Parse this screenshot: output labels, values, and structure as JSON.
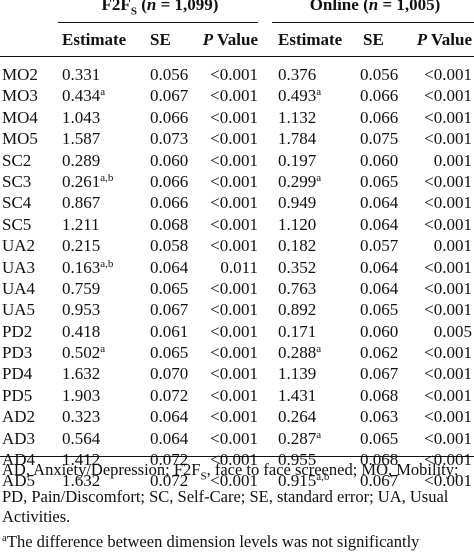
{
  "groups": {
    "f2f": {
      "prefix": "F2F",
      "sub": "S",
      "n_open": " (",
      "n_var": "n",
      "n_value": " = 1,099)"
    },
    "online": {
      "prefix": "Online",
      "n_open": " (",
      "n_var": "n",
      "n_value": " = 1,005)"
    }
  },
  "columns": {
    "estimate": "Estimate",
    "se": "SE",
    "p_italic": "P",
    "p_rest": " Value"
  },
  "rows": [
    {
      "label": "MO2",
      "f2f": {
        "est": "0.331",
        "sup": "",
        "se": "0.056",
        "p": "<0.001"
      },
      "online": {
        "est": "0.376",
        "sup": "",
        "se": "0.056",
        "p": "<0.001"
      }
    },
    {
      "label": "MO3",
      "f2f": {
        "est": "0.434",
        "sup": "a",
        "se": "0.067",
        "p": "<0.001"
      },
      "online": {
        "est": "0.493",
        "sup": "a",
        "se": "0.066",
        "p": "<0.001"
      }
    },
    {
      "label": "MO4",
      "f2f": {
        "est": "1.043",
        "sup": "",
        "se": "0.066",
        "p": "<0.001"
      },
      "online": {
        "est": "1.132",
        "sup": "",
        "se": "0.066",
        "p": "<0.001"
      }
    },
    {
      "label": "MO5",
      "f2f": {
        "est": "1.587",
        "sup": "",
        "se": "0.073",
        "p": "<0.001"
      },
      "online": {
        "est": "1.784",
        "sup": "",
        "se": "0.075",
        "p": "<0.001"
      }
    },
    {
      "label": "SC2",
      "f2f": {
        "est": "0.289",
        "sup": "",
        "se": "0.060",
        "p": "<0.001"
      },
      "online": {
        "est": "0.197",
        "sup": "",
        "se": "0.060",
        "p": "0.001"
      }
    },
    {
      "label": "SC3",
      "f2f": {
        "est": "0.261",
        "sup": "a,b",
        "se": "0.066",
        "p": "<0.001"
      },
      "online": {
        "est": "0.299",
        "sup": "a",
        "se": "0.065",
        "p": "<0.001"
      }
    },
    {
      "label": "SC4",
      "f2f": {
        "est": "0.867",
        "sup": "",
        "se": "0.066",
        "p": "<0.001"
      },
      "online": {
        "est": "0.949",
        "sup": "",
        "se": "0.064",
        "p": "<0.001"
      }
    },
    {
      "label": "SC5",
      "f2f": {
        "est": "1.211",
        "sup": "",
        "se": "0.068",
        "p": "<0.001"
      },
      "online": {
        "est": "1.120",
        "sup": "",
        "se": "0.064",
        "p": "<0.001"
      }
    },
    {
      "label": "UA2",
      "f2f": {
        "est": "0.215",
        "sup": "",
        "se": "0.058",
        "p": "<0.001"
      },
      "online": {
        "est": "0.182",
        "sup": "",
        "se": "0.057",
        "p": "0.001"
      }
    },
    {
      "label": "UA3",
      "f2f": {
        "est": "0.163",
        "sup": "a,b",
        "se": "0.064",
        "p": "0.011"
      },
      "online": {
        "est": "0.352",
        "sup": "",
        "se": "0.064",
        "p": "<0.001"
      }
    },
    {
      "label": "UA4",
      "f2f": {
        "est": "0.759",
        "sup": "",
        "se": "0.065",
        "p": "<0.001"
      },
      "online": {
        "est": "0.763",
        "sup": "",
        "se": "0.064",
        "p": "<0.001"
      }
    },
    {
      "label": "UA5",
      "f2f": {
        "est": "0.953",
        "sup": "",
        "se": "0.067",
        "p": "<0.001"
      },
      "online": {
        "est": "0.892",
        "sup": "",
        "se": "0.065",
        "p": "<0.001"
      }
    },
    {
      "label": "PD2",
      "f2f": {
        "est": "0.418",
        "sup": "",
        "se": "0.061",
        "p": "<0.001"
      },
      "online": {
        "est": "0.171",
        "sup": "",
        "se": "0.060",
        "p": "0.005"
      }
    },
    {
      "label": "PD3",
      "f2f": {
        "est": "0.502",
        "sup": "a",
        "se": "0.065",
        "p": "<0.001"
      },
      "online": {
        "est": "0.288",
        "sup": "a",
        "se": "0.062",
        "p": "<0.001"
      }
    },
    {
      "label": "PD4",
      "f2f": {
        "est": "1.632",
        "sup": "",
        "se": "0.070",
        "p": "<0.001"
      },
      "online": {
        "est": "1.139",
        "sup": "",
        "se": "0.067",
        "p": "<0.001"
      }
    },
    {
      "label": "PD5",
      "f2f": {
        "est": "1.903",
        "sup": "",
        "se": "0.072",
        "p": "<0.001"
      },
      "online": {
        "est": "1.431",
        "sup": "",
        "se": "0.068",
        "p": "<0.001"
      }
    },
    {
      "label": "AD2",
      "f2f": {
        "est": "0.323",
        "sup": "",
        "se": "0.064",
        "p": "<0.001"
      },
      "online": {
        "est": "0.264",
        "sup": "",
        "se": "0.063",
        "p": "<0.001"
      }
    },
    {
      "label": "AD3",
      "f2f": {
        "est": "0.564",
        "sup": "",
        "se": "0.064",
        "p": "<0.001"
      },
      "online": {
        "est": "0.287",
        "sup": "a",
        "se": "0.065",
        "p": "<0.001"
      }
    },
    {
      "label": "AD4",
      "f2f": {
        "est": "1.412",
        "sup": "",
        "se": "0.072",
        "p": "<0.001"
      },
      "online": {
        "est": "0.955",
        "sup": "",
        "se": "0.068",
        "p": "<0.001"
      }
    },
    {
      "label": "AD5",
      "f2f": {
        "est": "1.632",
        "sup": "",
        "se": "0.072",
        "p": "<0.001"
      },
      "online": {
        "est": "0.915",
        "sup": "a,b",
        "se": "0.067",
        "p": "<0.001"
      }
    }
  ],
  "footnote": {
    "part1": "AD, Anxiety/Depression; F2F",
    "part1_sub": "S",
    "part2": ", face to face screened; MO, Mobility; PD, Pain/Discomfort; SC, Self-Care; SE, standard error; UA, Usual Activities.",
    "second_sup": "a",
    "second_text": "The difference between dimension levels was not significantly"
  }
}
